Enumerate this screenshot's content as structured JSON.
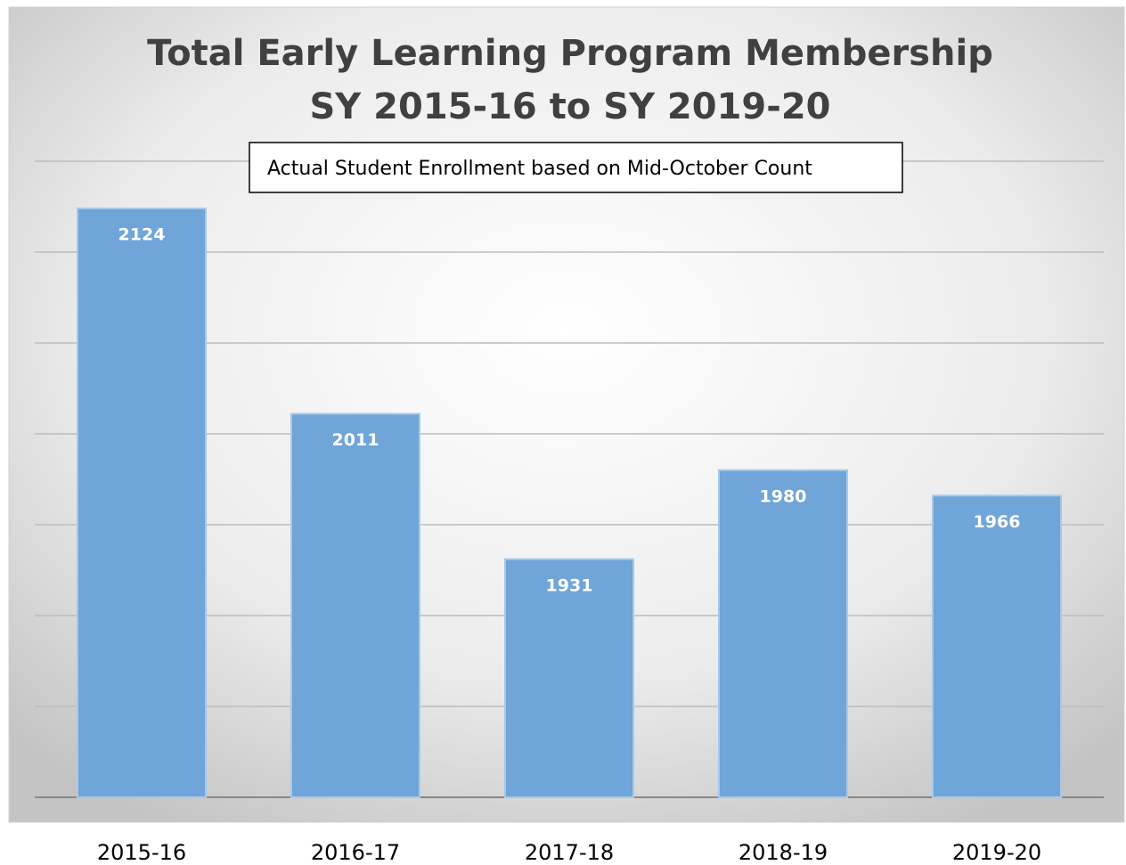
{
  "chart_data": {
    "type": "bar",
    "title": [
      "Total Early Learning Program Membership",
      "SY 2015-16 to SY 2019-20"
    ],
    "annotation": "Actual Student Enrollment based on Mid-October Count",
    "categories": [
      "2015-16",
      "2016-17",
      "2017-18",
      "2018-19",
      "2019-20"
    ],
    "values": [
      2124,
      2011,
      1931,
      1980,
      1966
    ],
    "color": "#6fa5d8",
    "ylim": [
      1800,
      2150
    ],
    "yticks": [
      1800,
      1850,
      1900,
      1950,
      2000,
      2050,
      2100,
      2150
    ],
    "grid": true
  }
}
